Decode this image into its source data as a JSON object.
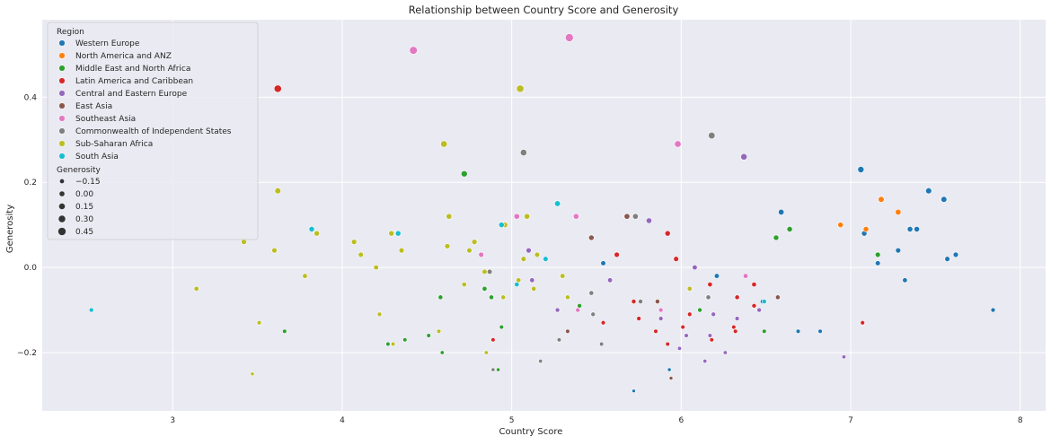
{
  "chart_data": {
    "type": "scatter",
    "title": "Relationship between Country Score and Generosity",
    "xlabel": "Country Score",
    "ylabel": "Generosity",
    "xlim": [
      2.23,
      8.15
    ],
    "ylim": [
      -0.337,
      0.582
    ],
    "xticks": [
      3,
      4,
      5,
      6,
      7,
      8
    ],
    "yticks": [
      -0.2,
      0.0,
      0.2,
      0.4
    ],
    "xtick_labels": [
      "3",
      "4",
      "5",
      "6",
      "7",
      "8"
    ],
    "ytick_labels": [
      "−0.2",
      "0.0",
      "0.2",
      "0.4"
    ],
    "grid": true,
    "background": "#eaeaf2",
    "legend": {
      "placement": "top-left",
      "hue_title": "Region",
      "size_title": "Generosity",
      "size_entries": [
        {
          "label": "−0.15",
          "value": -0.15
        },
        {
          "label": "0.00",
          "value": 0.0
        },
        {
          "label": "0.15",
          "value": 0.15
        },
        {
          "label": "0.30",
          "value": 0.3
        },
        {
          "label": "0.45",
          "value": 0.45
        }
      ]
    },
    "series": [
      {
        "name": "Western Europe",
        "color": "#1f77b4",
        "points": [
          [
            7.06,
            0.23
          ],
          [
            7.46,
            0.18
          ],
          [
            7.55,
            0.16
          ],
          [
            6.59,
            0.13
          ],
          [
            7.08,
            0.08
          ],
          [
            7.35,
            0.09
          ],
          [
            7.39,
            0.09
          ],
          [
            7.28,
            0.04
          ],
          [
            7.16,
            0.01
          ],
          [
            7.57,
            0.02
          ],
          [
            7.62,
            0.03
          ],
          [
            5.54,
            0.01
          ],
          [
            6.21,
            -0.02
          ],
          [
            7.32,
            -0.03
          ],
          [
            6.48,
            -0.08
          ],
          [
            6.69,
            -0.15
          ],
          [
            6.82,
            -0.15
          ],
          [
            7.84,
            -0.1
          ],
          [
            5.93,
            -0.24
          ],
          [
            5.72,
            -0.29
          ]
        ]
      },
      {
        "name": "North America and ANZ",
        "color": "#ff7f0e",
        "points": [
          [
            7.18,
            0.16
          ],
          [
            7.28,
            0.13
          ],
          [
            6.94,
            0.1
          ],
          [
            7.09,
            0.09
          ]
        ]
      },
      {
        "name": "Middle East and North Africa",
        "color": "#2ca02c",
        "points": [
          [
            4.72,
            0.22
          ],
          [
            6.64,
            0.09
          ],
          [
            6.56,
            0.07
          ],
          [
            7.16,
            0.03
          ],
          [
            5.4,
            -0.09
          ],
          [
            4.58,
            -0.07
          ],
          [
            4.84,
            -0.05
          ],
          [
            4.88,
            -0.07
          ],
          [
            6.11,
            -0.1
          ],
          [
            4.94,
            -0.14
          ],
          [
            3.66,
            -0.15
          ],
          [
            4.27,
            -0.18
          ],
          [
            4.37,
            -0.17
          ],
          [
            4.51,
            -0.16
          ],
          [
            4.59,
            -0.2
          ],
          [
            4.92,
            -0.24
          ],
          [
            6.49,
            -0.15
          ]
        ]
      },
      {
        "name": "Latin America and Caribbean",
        "color": "#d62728",
        "points": [
          [
            3.62,
            0.42
          ],
          [
            5.92,
            0.08
          ],
          [
            5.62,
            0.03
          ],
          [
            5.97,
            0.02
          ],
          [
            6.17,
            -0.04
          ],
          [
            6.43,
            -0.04
          ],
          [
            5.72,
            -0.08
          ],
          [
            5.86,
            -0.08
          ],
          [
            6.33,
            -0.07
          ],
          [
            6.43,
            -0.09
          ],
          [
            5.75,
            -0.12
          ],
          [
            6.05,
            -0.11
          ],
          [
            6.01,
            -0.14
          ],
          [
            6.31,
            -0.14
          ],
          [
            6.32,
            -0.15
          ],
          [
            6.18,
            -0.17
          ],
          [
            5.54,
            -0.13
          ],
          [
            5.85,
            -0.15
          ],
          [
            7.07,
            -0.13
          ],
          [
            4.89,
            -0.17
          ],
          [
            5.92,
            -0.18
          ]
        ]
      },
      {
        "name": "Central and Eastern Europe",
        "color": "#9467bd",
        "points": [
          [
            6.37,
            0.26
          ],
          [
            5.81,
            0.11
          ],
          [
            5.1,
            0.04
          ],
          [
            6.08,
            0.0
          ],
          [
            5.12,
            -0.03
          ],
          [
            5.58,
            -0.03
          ],
          [
            5.27,
            -0.1
          ],
          [
            5.88,
            -0.12
          ],
          [
            6.19,
            -0.11
          ],
          [
            6.33,
            -0.12
          ],
          [
            6.46,
            -0.1
          ],
          [
            6.17,
            -0.16
          ],
          [
            6.03,
            -0.16
          ],
          [
            6.26,
            -0.2
          ],
          [
            6.14,
            -0.22
          ],
          [
            6.96,
            -0.21
          ],
          [
            5.99,
            -0.19
          ]
        ]
      },
      {
        "name": "East Asia",
        "color": "#8c564b",
        "points": [
          [
            5.68,
            0.12
          ],
          [
            5.47,
            0.07
          ],
          [
            5.86,
            -0.08
          ],
          [
            6.57,
            -0.07
          ],
          [
            5.33,
            -0.15
          ],
          [
            5.94,
            -0.26
          ]
        ]
      },
      {
        "name": "Southeast Asia",
        "color": "#e377c2",
        "points": [
          [
            5.34,
            0.54
          ],
          [
            4.42,
            0.51
          ],
          [
            5.98,
            0.29
          ],
          [
            5.38,
            0.12
          ],
          [
            5.03,
            0.12
          ],
          [
            4.82,
            0.03
          ],
          [
            6.38,
            -0.02
          ],
          [
            5.88,
            -0.1
          ],
          [
            5.39,
            -0.1
          ]
        ]
      },
      {
        "name": "Commonwealth of Independent States",
        "color": "#7f7f7f",
        "points": [
          [
            6.18,
            0.31
          ],
          [
            5.07,
            0.27
          ],
          [
            5.73,
            0.12
          ],
          [
            5.47,
            -0.06
          ],
          [
            4.87,
            -0.01
          ],
          [
            6.16,
            -0.07
          ],
          [
            5.76,
            -0.08
          ],
          [
            5.48,
            -0.11
          ],
          [
            5.28,
            -0.17
          ],
          [
            5.53,
            -0.18
          ],
          [
            5.17,
            -0.22
          ],
          [
            4.89,
            -0.24
          ]
        ]
      },
      {
        "name": "Sub-Saharan Africa",
        "color": "#bcbd22",
        "points": [
          [
            5.05,
            0.42
          ],
          [
            4.6,
            0.29
          ],
          [
            3.62,
            0.18
          ],
          [
            4.63,
            0.12
          ],
          [
            5.09,
            0.12
          ],
          [
            4.96,
            0.1
          ],
          [
            4.29,
            0.08
          ],
          [
            3.85,
            0.08
          ],
          [
            3.42,
            0.06
          ],
          [
            4.07,
            0.06
          ],
          [
            4.78,
            0.06
          ],
          [
            3.6,
            0.04
          ],
          [
            4.35,
            0.04
          ],
          [
            4.75,
            0.04
          ],
          [
            4.62,
            0.05
          ],
          [
            4.11,
            0.03
          ],
          [
            5.15,
            0.03
          ],
          [
            5.07,
            0.02
          ],
          [
            4.2,
            0.0
          ],
          [
            4.84,
            -0.01
          ],
          [
            5.3,
            -0.02
          ],
          [
            3.78,
            -0.02
          ],
          [
            4.72,
            -0.04
          ],
          [
            5.04,
            -0.03
          ],
          [
            3.14,
            -0.05
          ],
          [
            5.13,
            -0.05
          ],
          [
            6.05,
            -0.05
          ],
          [
            4.95,
            -0.07
          ],
          [
            5.33,
            -0.07
          ],
          [
            4.22,
            -0.11
          ],
          [
            3.51,
            -0.13
          ],
          [
            4.57,
            -0.15
          ],
          [
            4.3,
            -0.18
          ],
          [
            4.85,
            -0.2
          ],
          [
            3.47,
            -0.25
          ]
        ]
      },
      {
        "name": "South Asia",
        "color": "#17becf",
        "points": [
          [
            5.27,
            0.15
          ],
          [
            4.94,
            0.1
          ],
          [
            3.82,
            0.09
          ],
          [
            4.33,
            0.08
          ],
          [
            5.2,
            0.02
          ],
          [
            5.03,
            -0.04
          ],
          [
            2.52,
            -0.1
          ],
          [
            6.49,
            -0.08
          ]
        ]
      }
    ]
  }
}
